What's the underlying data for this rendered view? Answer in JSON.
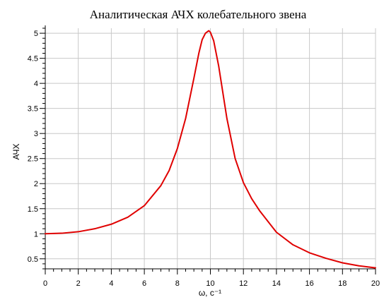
{
  "chart_data": {
    "type": "line",
    "title": "Аналитическая АЧХ колебательного звена",
    "xlabel": "ω, с⁻¹",
    "ylabel": "АЧХ",
    "xlim": [
      0,
      20
    ],
    "ylim": [
      0.3,
      5.1
    ],
    "grid": true,
    "x_ticks": [
      "0",
      "2",
      "4",
      "6",
      "8",
      "10",
      "12",
      "14",
      "16",
      "18",
      "20"
    ],
    "y_ticks": [
      "0.5",
      "1",
      "1.5",
      "2",
      "2.5",
      "3",
      "3.5",
      "4",
      "4.5",
      "5"
    ],
    "series": [
      {
        "color": "#e00000",
        "x": [
          0,
          1,
          2,
          3,
          4,
          5,
          6,
          7,
          7.5,
          8,
          8.5,
          9,
          9.3,
          9.5,
          9.7,
          9.9,
          10,
          10.2,
          10.5,
          11,
          11.5,
          12,
          12.5,
          13,
          14,
          15,
          16,
          17,
          18,
          19,
          20
        ],
        "y": [
          1.0,
          1.01,
          1.04,
          1.1,
          1.19,
          1.33,
          1.56,
          1.96,
          2.26,
          2.7,
          3.3,
          4.1,
          4.6,
          4.87,
          5.0,
          5.05,
          5.02,
          4.85,
          4.35,
          3.3,
          2.5,
          2.02,
          1.7,
          1.45,
          1.03,
          0.78,
          0.62,
          0.51,
          0.42,
          0.36,
          0.32
        ]
      }
    ]
  }
}
